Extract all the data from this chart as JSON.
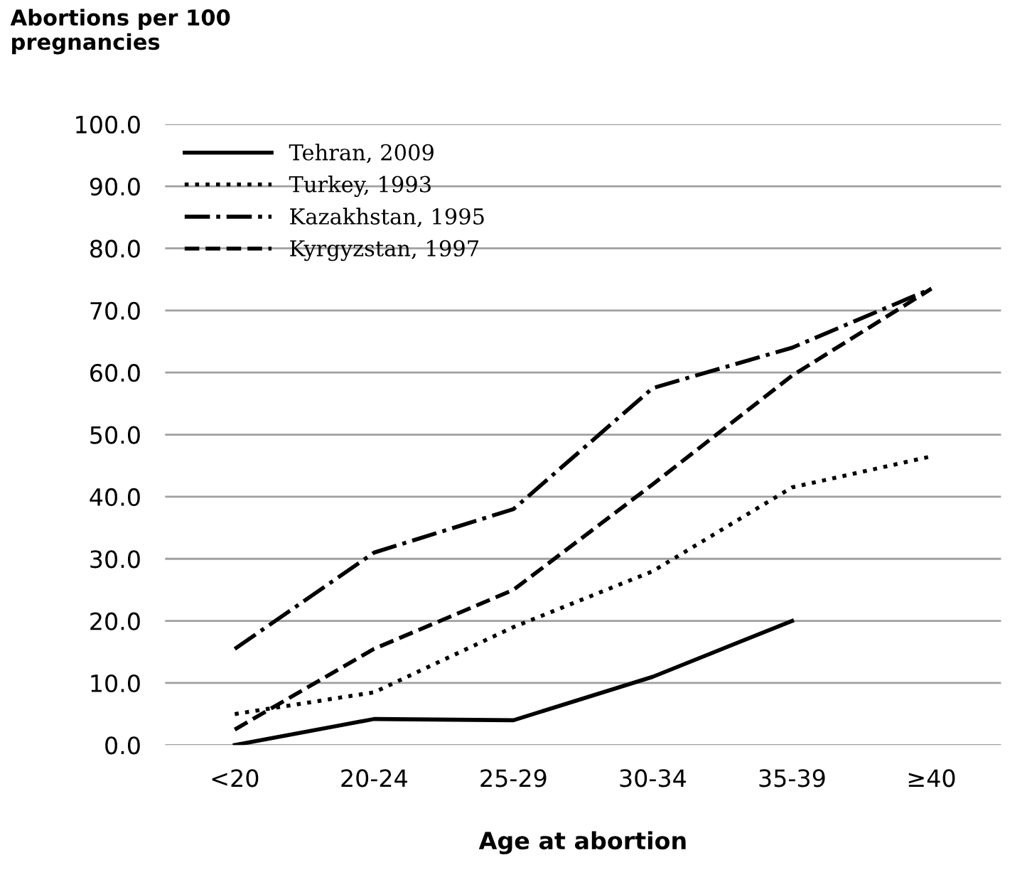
{
  "chart_data": {
    "type": "line",
    "ylabel": "Abortions per 100\npregnancies",
    "xlabel": "Age at abortion",
    "categories": [
      "<20",
      "20-24",
      "25-29",
      "30-34",
      "35-39",
      "≥40"
    ],
    "series": [
      {
        "name": "Tehran, 2009",
        "color": "#000000",
        "line_style": "solid",
        "values": [
          0,
          4.2,
          4.0,
          11,
          20,
          null
        ]
      },
      {
        "name": "Turkey, 1993",
        "color": "#000000",
        "line_style": "dotted",
        "values": [
          5,
          8.5,
          19,
          28,
          41.5,
          46.5
        ]
      },
      {
        "name": "Kazakhstan, 1995",
        "color": "#000000",
        "line_style": "dashdot",
        "values": [
          15.5,
          31,
          38,
          57.5,
          64,
          73.5
        ]
      },
      {
        "name": "Kyrgyzstan, 1997",
        "color": "#000000",
        "line_style": "dashed",
        "values": [
          2.5,
          15.5,
          25,
          42,
          59.5,
          73.5
        ]
      }
    ],
    "ylim": [
      0,
      100
    ],
    "yticks": [
      {
        "value": 0,
        "label": "0.0"
      },
      {
        "value": 10,
        "label": "10.0"
      },
      {
        "value": 20,
        "label": "20.0"
      },
      {
        "value": 30,
        "label": "30.0"
      },
      {
        "value": 40,
        "label": "40.0"
      },
      {
        "value": 50,
        "label": "50.0"
      },
      {
        "value": 60,
        "label": "60.0"
      },
      {
        "value": 70,
        "label": "70.0"
      },
      {
        "value": 80,
        "label": "80.0"
      },
      {
        "value": 90,
        "label": "90.0"
      },
      {
        "value": 100,
        "label": "100.0"
      }
    ],
    "grid": "y",
    "legend": "top left",
    "marker": "none"
  }
}
